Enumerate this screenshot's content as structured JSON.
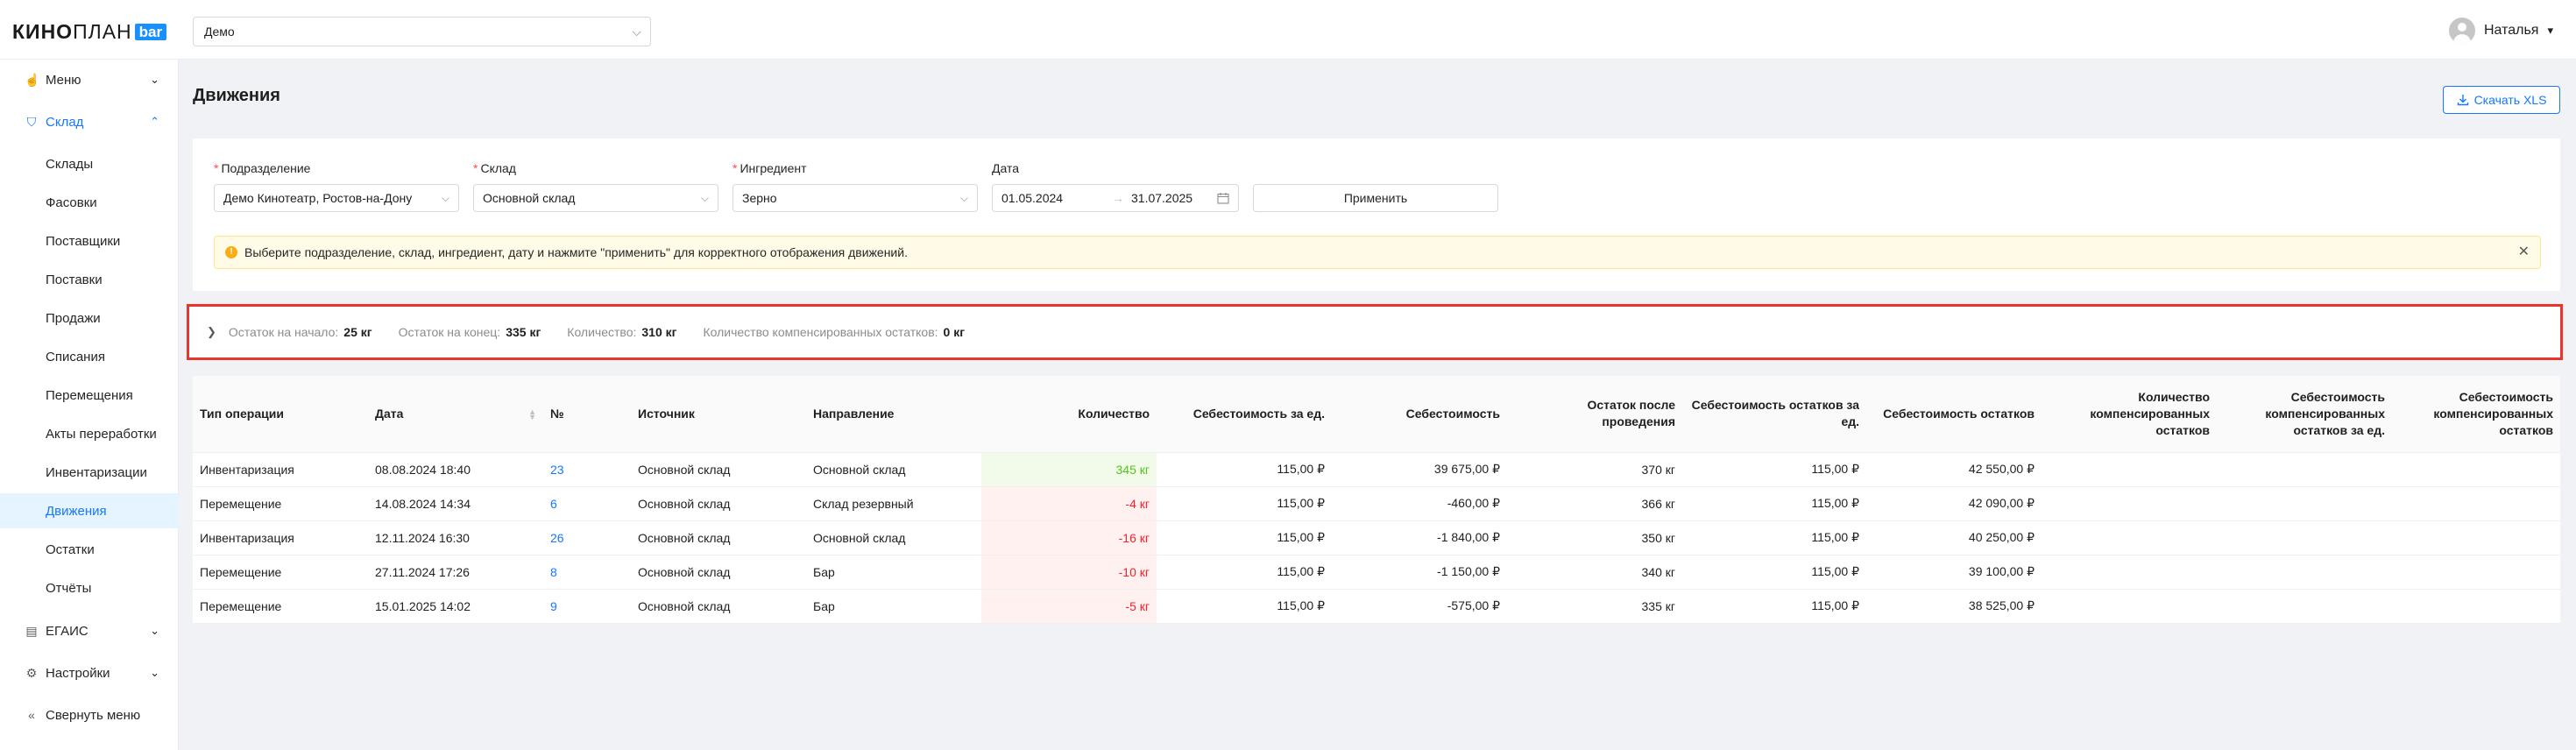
{
  "header": {
    "logo_main": "КИНО",
    "logo_light": "ПЛАН",
    "logo_badge": "bar",
    "org_select": "Демо",
    "user_name": "Наталья"
  },
  "sidebar": {
    "menu": "Меню",
    "warehouse": "Склад",
    "sub_items": [
      "Склады",
      "Фасовки",
      "Поставщики",
      "Поставки",
      "Продажи",
      "Списания",
      "Перемещения",
      "Акты переработки",
      "Инвентаризации",
      "Движения",
      "Остатки",
      "Отчёты"
    ],
    "active_sub": "Движения",
    "egais": "ЕГАИС",
    "settings": "Настройки",
    "collapse": "Свернуть меню"
  },
  "page": {
    "title": "Движения",
    "download_button": "Скачать XLS"
  },
  "filters": {
    "division_label": "Подразделение",
    "division_value": "Демо Кинотеатр, Ростов-на-Дону",
    "warehouse_label": "Склад",
    "warehouse_value": "Основной склад",
    "ingredient_label": "Ингредиент",
    "ingredient_value": "Зерно",
    "date_label": "Дата",
    "date_from": "01.05.2024",
    "date_to": "31.07.2025",
    "apply_button": "Применить",
    "alert_text": "Выберите подразделение, склад, ингредиент, дату и нажмите \"применить\" для корректного отображения движений."
  },
  "summary": {
    "start_label": "Остаток на начало:",
    "start_value": "25 кг",
    "end_label": "Остаток на конец:",
    "end_value": "335 кг",
    "qty_label": "Количество:",
    "qty_value": "310 кг",
    "comp_label": "Количество компенсированных остатков:",
    "comp_value": "0 кг"
  },
  "table": {
    "headers": [
      "Тип операции",
      "Дата",
      "№",
      "Источник",
      "Направление",
      "Количество",
      "Себестоимость за ед.",
      "Себестоимость",
      "Остаток после проведения",
      "Себестоимость остатков за ед.",
      "Себестоимость остатков",
      "Количество компенсированных остатков",
      "Себестоимость компенсированных остатков за ед.",
      "Себестоимость компенсированных остатков"
    ],
    "rows": [
      {
        "type": "Инвентаризация",
        "date": "08.08.2024 18:40",
        "num": "23",
        "source": "Основной склад",
        "dest": "Основной склад",
        "qty": "345 кг",
        "unit_cost": "115,00 ₽",
        "cost": "39 675,00 ₽",
        "balance": "370 кг",
        "bal_unit_cost": "115,00 ₽",
        "bal_cost": "42 550,00 ₽"
      },
      {
        "type": "Перемещение",
        "date": "14.08.2024 14:34",
        "num": "6",
        "source": "Основной склад",
        "dest": "Склад резервный",
        "qty": "-4 кг",
        "unit_cost": "115,00 ₽",
        "cost": "-460,00 ₽",
        "balance": "366 кг",
        "bal_unit_cost": "115,00 ₽",
        "bal_cost": "42 090,00 ₽"
      },
      {
        "type": "Инвентаризация",
        "date": "12.11.2024 16:30",
        "num": "26",
        "source": "Основной склад",
        "dest": "Основной склад",
        "qty": "-16 кг",
        "unit_cost": "115,00 ₽",
        "cost": "-1 840,00 ₽",
        "balance": "350 кг",
        "bal_unit_cost": "115,00 ₽",
        "bal_cost": "40 250,00 ₽"
      },
      {
        "type": "Перемещение",
        "date": "27.11.2024 17:26",
        "num": "8",
        "source": "Основной склад",
        "dest": "Бар",
        "qty": "-10 кг",
        "unit_cost": "115,00 ₽",
        "cost": "-1 150,00 ₽",
        "balance": "340 кг",
        "bal_unit_cost": "115,00 ₽",
        "bal_cost": "39 100,00 ₽"
      },
      {
        "type": "Перемещение",
        "date": "15.01.2025 14:02",
        "num": "9",
        "source": "Основной склад",
        "dest": "Бар",
        "qty": "-5 кг",
        "unit_cost": "115,00 ₽",
        "cost": "-575,00 ₽",
        "balance": "335 кг",
        "bal_unit_cost": "115,00 ₽",
        "bal_cost": "38 525,00 ₽"
      }
    ]
  },
  "colors": {
    "accent": "#1677ff",
    "highlight_border": "#e8342a",
    "positive": "#52c41a",
    "negative": "#f5222d"
  }
}
